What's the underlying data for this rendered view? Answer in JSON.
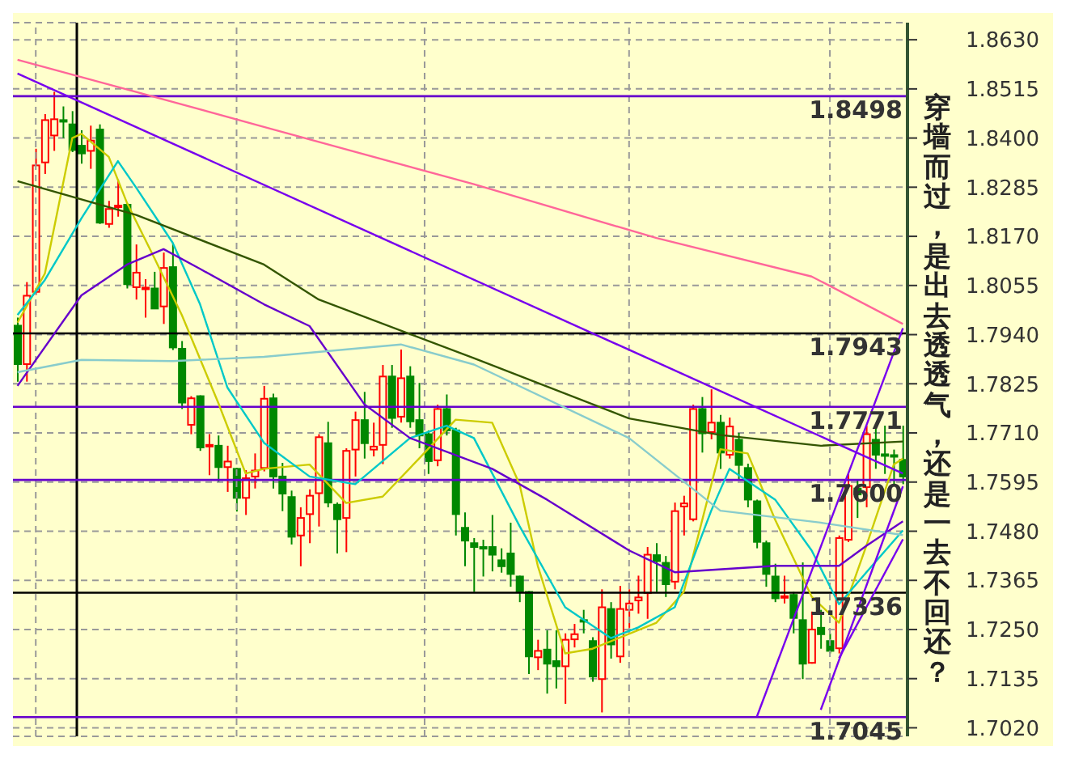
{
  "chart_data": {
    "type": "candlestick",
    "categories": [
      null,
      null,
      null,
      null,
      null,
      null,
      null,
      null,
      null,
      null,
      null,
      null,
      null,
      null,
      null,
      null,
      null,
      null,
      null,
      null,
      null,
      null,
      null,
      null,
      null,
      null,
      null,
      null,
      null,
      null,
      null,
      null,
      null,
      null,
      null,
      null,
      null,
      null,
      null,
      null,
      null,
      null,
      null,
      null,
      null,
      null,
      null,
      null,
      null,
      null,
      null,
      null,
      null,
      null,
      null,
      null,
      null,
      null,
      null,
      null,
      null,
      null,
      null,
      null,
      null,
      null,
      null,
      null,
      null,
      null,
      null,
      null,
      null,
      null,
      null,
      null,
      null,
      null,
      null,
      null,
      null,
      null,
      null,
      null,
      null,
      null,
      null,
      null,
      null,
      null,
      null,
      null,
      null,
      null,
      null,
      null,
      null,
      null
    ],
    "ohlc": [
      [
        1.7961,
        1.798,
        1.783,
        1.7871
      ],
      [
        1.7871,
        1.8063,
        1.783,
        1.8031
      ],
      [
        1.804,
        1.8375,
        1.8033,
        1.8336
      ],
      [
        1.8343,
        1.8456,
        1.8316,
        1.8442
      ],
      [
        1.8406,
        1.8508,
        1.837,
        1.8444
      ],
      [
        1.8442,
        1.8474,
        1.84,
        1.844
      ],
      [
        1.8432,
        1.8463,
        1.8367,
        1.8372
      ],
      [
        1.8382,
        1.8418,
        1.834,
        1.8364
      ],
      [
        1.837,
        1.8429,
        1.8328,
        1.8394
      ],
      [
        1.842,
        1.8432,
        1.8199,
        1.8202
      ],
      [
        1.8199,
        1.8253,
        1.819,
        1.8234
      ],
      [
        1.824,
        1.8303,
        1.8216,
        1.8242
      ],
      [
        1.8244,
        1.8247,
        1.8048,
        1.8058
      ],
      [
        1.8051,
        1.8151,
        1.8022,
        1.8085
      ],
      [
        1.8048,
        1.807,
        1.798,
        1.805
      ],
      [
        1.8048,
        1.8087,
        1.8,
        1.8001
      ],
      [
        1.8006,
        1.8132,
        1.7965,
        1.8096
      ],
      [
        1.8098,
        1.8154,
        1.7904,
        1.791
      ],
      [
        1.7907,
        1.7925,
        1.7766,
        1.7781
      ],
      [
        1.7729,
        1.7796,
        1.7707,
        1.7791
      ],
      [
        1.7796,
        1.7798,
        1.7668,
        1.7676
      ],
      [
        1.768,
        1.7707,
        1.7611,
        1.7682
      ],
      [
        1.768,
        1.7704,
        1.7596,
        1.763
      ],
      [
        1.763,
        1.768,
        1.7572,
        1.7643
      ],
      [
        1.7626,
        1.7628,
        1.7526,
        1.7558
      ],
      [
        1.7558,
        1.7623,
        1.7518,
        1.7604
      ],
      [
        1.7608,
        1.7662,
        1.758,
        1.7622
      ],
      [
        1.7628,
        1.782,
        1.762,
        1.779
      ],
      [
        1.7791,
        1.7802,
        1.758,
        1.7608
      ],
      [
        1.7608,
        1.764,
        1.7527,
        1.7568
      ],
      [
        1.756,
        1.7575,
        1.7449,
        1.7467
      ],
      [
        1.747,
        1.7536,
        1.7398,
        1.7511
      ],
      [
        1.752,
        1.7578,
        1.7452,
        1.7563
      ],
      [
        1.7569,
        1.7707,
        1.7491,
        1.77
      ],
      [
        1.7686,
        1.7736,
        1.7536,
        1.7547
      ],
      [
        1.7542,
        1.7547,
        1.7428,
        1.7508
      ],
      [
        1.7511,
        1.7674,
        1.7431,
        1.7668
      ],
      [
        1.7671,
        1.776,
        1.7608,
        1.774
      ],
      [
        1.774,
        1.7806,
        1.765,
        1.7686
      ],
      [
        1.7671,
        1.7734,
        1.7655,
        1.7678
      ],
      [
        1.7682,
        1.7869,
        1.7637,
        1.7842
      ],
      [
        1.7842,
        1.7869,
        1.7722,
        1.7745
      ],
      [
        1.7748,
        1.7905,
        1.7734,
        1.7838
      ],
      [
        1.7842,
        1.7866,
        1.7722,
        1.7737
      ],
      [
        1.774,
        1.7827,
        1.7674,
        1.7704
      ],
      [
        1.7707,
        1.7716,
        1.7614,
        1.7644
      ],
      [
        1.7646,
        1.7776,
        1.7632,
        1.7766
      ],
      [
        1.7766,
        1.78,
        1.7704,
        1.7716
      ],
      [
        1.7716,
        1.7722,
        1.747,
        1.752
      ],
      [
        1.7488,
        1.7524,
        1.7398,
        1.7458
      ],
      [
        1.7452,
        1.7464,
        1.7338,
        1.7443
      ],
      [
        1.7443,
        1.746,
        1.7374,
        1.7441
      ],
      [
        1.7443,
        1.7518,
        1.7386,
        1.7425
      ],
      [
        1.7412,
        1.744,
        1.7383,
        1.7398
      ],
      [
        1.7428,
        1.75,
        1.735,
        1.738
      ],
      [
        1.7374,
        1.7376,
        1.7314,
        1.7338
      ],
      [
        1.7338,
        1.734,
        1.7146,
        1.7187
      ],
      [
        1.7185,
        1.7226,
        1.7155,
        1.72
      ],
      [
        1.7203,
        1.7248,
        1.71,
        1.717
      ],
      [
        1.7176,
        1.7248,
        1.7112,
        1.7164
      ],
      [
        1.7164,
        1.7241,
        1.7076,
        1.7226
      ],
      [
        1.7227,
        1.7263,
        1.7208,
        1.7239
      ],
      [
        1.7272,
        1.7296,
        1.7241,
        1.727
      ],
      [
        1.7223,
        1.7232,
        1.7128,
        1.714
      ],
      [
        1.7134,
        1.7344,
        1.7056,
        1.7302
      ],
      [
        1.7298,
        1.7314,
        1.7182,
        1.7215
      ],
      [
        1.7187,
        1.7352,
        1.7172,
        1.7298
      ],
      [
        1.7296,
        1.7344,
        1.7254,
        1.7311
      ],
      [
        1.7318,
        1.7376,
        1.7287,
        1.7325
      ],
      [
        1.7335,
        1.7443,
        1.7275,
        1.7425
      ],
      [
        1.7424,
        1.7452,
        1.7338,
        1.741
      ],
      [
        1.7406,
        1.7422,
        1.7326,
        1.7356
      ],
      [
        1.7362,
        1.7547,
        1.7344,
        1.7527
      ],
      [
        1.7538,
        1.7563,
        1.747,
        1.7545
      ],
      [
        1.7508,
        1.7776,
        1.7503,
        1.7766
      ],
      [
        1.7766,
        1.7794,
        1.7664,
        1.7709
      ],
      [
        1.7712,
        1.7812,
        1.7695,
        1.7734
      ],
      [
        1.7734,
        1.7752,
        1.7626,
        1.7664
      ],
      [
        1.7659,
        1.7746,
        1.765,
        1.7725
      ],
      [
        1.7694,
        1.771,
        1.7602,
        1.7635
      ],
      [
        1.7628,
        1.7638,
        1.7536,
        1.7554
      ],
      [
        1.755,
        1.7554,
        1.744,
        1.7455
      ],
      [
        1.7452,
        1.7458,
        1.735,
        1.738
      ],
      [
        1.7374,
        1.7404,
        1.7314,
        1.7323
      ],
      [
        1.7325,
        1.7376,
        1.7311,
        1.7328
      ],
      [
        1.7331,
        1.7338,
        1.7241,
        1.7277
      ],
      [
        1.7272,
        1.7407,
        1.7134,
        1.717
      ],
      [
        1.7172,
        1.7292,
        1.717,
        1.725
      ],
      [
        1.7254,
        1.7296,
        1.7205,
        1.7239
      ],
      [
        1.7223,
        1.7241,
        1.7194,
        1.72
      ],
      [
        1.7206,
        1.747,
        1.7194,
        1.7464
      ],
      [
        1.746,
        1.7614,
        1.7455,
        1.7586
      ],
      [
        1.758,
        1.7601,
        1.7511,
        1.7566
      ],
      [
        1.7583,
        1.7727,
        1.7536,
        1.7707
      ],
      [
        1.7694,
        1.7727,
        1.7626,
        1.7659
      ],
      [
        1.766,
        1.7727,
        1.7614,
        1.7658
      ],
      [
        1.7658,
        1.7671,
        1.759,
        1.7655
      ],
      [
        1.7647,
        1.7727,
        1.759,
        1.7608
      ]
    ],
    "series": [
      {
        "type": "line",
        "color": "#cccc00",
        "values": [
          1.7968,
          null,
          null,
          1.8083,
          null,
          null,
          1.84,
          1.841,
          null,
          null,
          1.8356,
          null,
          1.8248,
          null,
          null,
          1.8119,
          null,
          null,
          1.7986,
          null,
          null,
          null,
          1.778,
          null,
          null,
          1.7615,
          null,
          1.7626,
          null,
          null,
          null,
          null,
          1.7636,
          null,
          null,
          null,
          1.7546,
          null,
          null,
          null,
          1.7561,
          null,
          null,
          null,
          1.765,
          null,
          null,
          null,
          1.7741,
          null,
          null,
          null,
          1.7734,
          null,
          null,
          1.759,
          null,
          1.7399,
          null,
          null,
          1.7194,
          null,
          null,
          1.7205,
          null,
          null,
          null,
          null,
          null,
          null,
          1.7266,
          null,
          null,
          1.7338,
          null,
          null,
          null,
          1.7672,
          null,
          null,
          1.7662,
          null,
          null,
          1.7507,
          null,
          null,
          null,
          1.7327,
          null,
          null,
          1.7266,
          null,
          null,
          1.7446,
          null,
          null,
          1.7636,
          1.765
        ]
      },
      {
        "type": "line",
        "color": "#00c8c8",
        "values": [
          1.7986,
          null,
          null,
          1.8068,
          null,
          null,
          null,
          1.8212,
          null,
          null,
          null,
          1.8346,
          null,
          1.8284,
          null,
          null,
          null,
          1.8155,
          null,
          null,
          1.8011,
          null,
          null,
          1.7816,
          null,
          null,
          null,
          1.7687,
          null,
          null,
          null,
          null,
          1.7608,
          null,
          null,
          null,
          null,
          1.759,
          null,
          null,
          null,
          null,
          null,
          1.7698,
          null,
          null,
          null,
          1.7727,
          null,
          null,
          1.7698,
          null,
          null,
          null,
          null,
          1.7492,
          null,
          null,
          null,
          null,
          1.7302,
          null,
          null,
          null,
          null,
          1.723,
          null,
          null,
          1.7255,
          null,
          null,
          null,
          1.7302,
          null,
          null,
          null,
          1.7528,
          null,
          1.7626,
          null,
          null,
          null,
          null,
          1.7554,
          null,
          null,
          null,
          1.7435,
          null,
          null,
          1.7309,
          null,
          null,
          1.7384,
          null,
          null,
          null,
          1.7482
        ]
      },
      {
        "type": "line",
        "color": "#6600cc",
        "values": [
          1.782,
          null,
          null,
          null,
          null,
          null,
          null,
          1.8032,
          null,
          null,
          null,
          null,
          1.8104,
          null,
          null,
          null,
          1.814,
          null,
          null,
          null,
          1.8094,
          null,
          null,
          null,
          null,
          null,
          null,
          1.8011,
          null,
          null,
          null,
          null,
          1.796,
          null,
          null,
          null,
          null,
          null,
          1.7777,
          null,
          null,
          null,
          null,
          1.7698,
          null,
          null,
          null,
          null,
          null,
          null,
          null,
          null,
          1.7626,
          null,
          null,
          null,
          null,
          null,
          1.7554,
          null,
          null,
          null,
          null,
          null,
          null,
          null,
          null,
          1.7435,
          null,
          null,
          null,
          null,
          1.7384,
          null,
          null,
          null,
          null,
          null,
          null,
          null,
          null,
          null,
          null,
          1.7399,
          null,
          null,
          null,
          null,
          null,
          null,
          1.7399,
          null,
          null,
          1.7446,
          null,
          null,
          null,
          1.7503
        ]
      },
      {
        "type": "line",
        "color": "#88cccc",
        "values": [
          1.7852,
          null,
          null,
          null,
          null,
          null,
          null,
          1.7881,
          null,
          null,
          null,
          null,
          null,
          null,
          null,
          null,
          null,
          1.7878,
          null,
          null,
          null,
          null,
          null,
          null,
          null,
          null,
          null,
          1.7888,
          null,
          null,
          null,
          null,
          null,
          null,
          null,
          null,
          null,
          null,
          null,
          null,
          null,
          null,
          1.7917,
          null,
          null,
          null,
          null,
          null,
          null,
          null,
          1.787,
          null,
          null,
          null,
          null,
          null,
          null,
          null,
          null,
          null,
          null,
          null,
          null,
          null,
          null,
          null,
          null,
          1.7698,
          null,
          null,
          null,
          null,
          null,
          null,
          null,
          null,
          null,
          1.7528,
          null,
          null,
          null,
          null,
          null,
          null,
          null,
          null,
          null,
          null,
          1.75,
          null,
          null,
          null,
          null,
          null,
          null,
          null,
          null,
          1.7471
        ]
      },
      {
        "type": "line",
        "color": "#335500",
        "values": [
          1.8299,
          null,
          null,
          null,
          null,
          null,
          null,
          null,
          null,
          null,
          null,
          null,
          null,
          1.822,
          null,
          null,
          null,
          null,
          null,
          null,
          null,
          null,
          null,
          null,
          null,
          null,
          null,
          1.8104,
          null,
          null,
          null,
          null,
          null,
          1.8022,
          null,
          null,
          null,
          null,
          null,
          null,
          null,
          null,
          null,
          null,
          null,
          null,
          null,
          null,
          null,
          null,
          1.7885,
          null,
          null,
          null,
          null,
          null,
          null,
          null,
          null,
          null,
          null,
          null,
          null,
          null,
          null,
          null,
          null,
          1.7744,
          null,
          null,
          null,
          null,
          null,
          null,
          null,
          null,
          null,
          1.7705,
          null,
          null,
          null,
          null,
          null,
          null,
          null,
          null,
          null,
          null,
          1.768,
          null,
          null,
          null,
          null,
          null,
          null,
          null,
          null,
          1.769
        ]
      },
      {
        "type": "line",
        "color": "#ff6699",
        "values": [
          1.8583,
          null,
          null,
          null,
          null,
          null,
          null,
          null,
          null,
          null,
          null,
          null,
          null,
          1.8508,
          null,
          null,
          null,
          null,
          null,
          null,
          null,
          null,
          null,
          null,
          null,
          null,
          null,
          1.8426,
          null,
          null,
          null,
          null,
          null,
          null,
          null,
          null,
          null,
          null,
          null,
          null,
          null,
          null,
          null,
          null,
          null,
          null,
          null,
          null,
          null,
          null,
          1.8292,
          null,
          null,
          null,
          null,
          null,
          null,
          null,
          null,
          null,
          null,
          null,
          null,
          null,
          null,
          null,
          null,
          null,
          null,
          null,
          1.8166,
          null,
          null,
          null,
          null,
          null,
          null,
          null,
          null,
          null,
          null,
          null,
          null,
          null,
          null,
          null,
          null,
          1.8076,
          null,
          null,
          null,
          null,
          null,
          null,
          null,
          null,
          null,
          1.7965
        ]
      },
      {
        "type": "line",
        "color": "#7700ee",
        "values": [
          1.8551,
          null,
          null,
          null,
          null,
          null,
          null,
          null,
          null,
          null,
          null,
          null,
          null,
          null,
          null,
          null,
          null,
          null,
          null,
          null,
          null,
          null,
          null,
          null,
          null,
          null,
          null,
          null,
          null,
          null,
          null,
          null,
          null,
          null,
          null,
          null,
          null,
          null,
          null,
          null,
          null,
          null,
          null,
          null,
          null,
          null,
          null,
          null,
          null,
          null,
          null,
          null,
          null,
          null,
          null,
          null,
          null,
          null,
          null,
          null,
          null,
          null,
          null,
          null,
          null,
          null,
          null,
          null,
          null,
          null,
          null,
          null,
          null,
          null,
          null,
          null,
          null,
          null,
          null,
          null,
          null,
          null,
          null,
          null,
          null,
          null,
          null,
          null,
          null,
          null,
          null,
          null,
          null,
          null,
          null,
          null,
          null,
          1.7615
        ]
      },
      {
        "type": "line",
        "color": "#7700ee",
        "values": [
          null,
          null,
          null,
          null,
          null,
          null,
          null,
          null,
          null,
          null,
          null,
          null,
          null,
          null,
          null,
          null,
          null,
          null,
          null,
          null,
          null,
          null,
          null,
          null,
          null,
          null,
          null,
          null,
          null,
          null,
          null,
          null,
          null,
          null,
          null,
          null,
          null,
          null,
          null,
          null,
          null,
          null,
          null,
          null,
          null,
          null,
          null,
          null,
          null,
          null,
          null,
          null,
          null,
          null,
          null,
          null,
          null,
          null,
          null,
          null,
          null,
          null,
          null,
          null,
          null,
          null,
          null,
          null,
          null,
          null,
          null,
          null,
          null,
          null,
          null,
          null,
          null,
          null,
          null,
          null,
          null,
          1.7046,
          null,
          null,
          null,
          null,
          null,
          null,
          null,
          null,
          null,
          null,
          null,
          null,
          null,
          null,
          null,
          1.7955
        ]
      },
      {
        "type": "line",
        "color": "#7700ee",
        "values": [
          null,
          null,
          null,
          null,
          null,
          null,
          null,
          null,
          null,
          null,
          null,
          null,
          null,
          null,
          null,
          null,
          null,
          null,
          null,
          null,
          null,
          null,
          null,
          null,
          null,
          null,
          null,
          null,
          null,
          null,
          null,
          null,
          null,
          null,
          null,
          null,
          null,
          null,
          null,
          null,
          null,
          null,
          null,
          null,
          null,
          null,
          null,
          null,
          null,
          null,
          null,
          null,
          null,
          null,
          null,
          null,
          null,
          null,
          null,
          null,
          null,
          null,
          null,
          null,
          null,
          null,
          null,
          null,
          null,
          null,
          null,
          null,
          null,
          null,
          null,
          null,
          null,
          null,
          null,
          null,
          null,
          null,
          null,
          null,
          null,
          null,
          null,
          null,
          1.7062,
          null,
          null,
          null,
          null,
          null,
          null,
          null,
          null,
          1.7585
        ]
      },
      {
        "type": "line",
        "color": "#7700ee",
        "values": [
          null,
          null,
          null,
          null,
          null,
          null,
          null,
          null,
          null,
          null,
          null,
          null,
          null,
          null,
          null,
          null,
          null,
          null,
          null,
          null,
          null,
          null,
          null,
          null,
          null,
          null,
          null,
          null,
          null,
          null,
          null,
          null,
          null,
          null,
          null,
          null,
          null,
          null,
          null,
          null,
          null,
          null,
          null,
          null,
          null,
          null,
          null,
          null,
          null,
          null,
          null,
          null,
          null,
          null,
          null,
          null,
          null,
          null,
          null,
          null,
          null,
          null,
          null,
          null,
          null,
          null,
          null,
          null,
          null,
          null,
          null,
          null,
          null,
          null,
          null,
          null,
          null,
          null,
          null,
          null,
          null,
          null,
          null,
          null,
          null,
          null,
          null,
          null,
          null,
          null,
          1.7183,
          null,
          null,
          null,
          null,
          null,
          null,
          1.7461
        ]
      }
    ],
    "ylim": [
      1.7,
      1.867
    ],
    "yticks": [
      {
        "value": 1.863,
        "label": "1.8630"
      },
      {
        "value": 1.8515,
        "label": "1.8515"
      },
      {
        "value": 1.84,
        "label": "1.8400"
      },
      {
        "value": 1.8285,
        "label": "1.8285"
      },
      {
        "value": 1.817,
        "label": "1.8170"
      },
      {
        "value": 1.8055,
        "label": "1.8055"
      },
      {
        "value": 1.794,
        "label": "1.7940"
      },
      {
        "value": 1.7825,
        "label": "1.7825"
      },
      {
        "value": 1.771,
        "label": "1.7710"
      },
      {
        "value": 1.7595,
        "label": "1.7595"
      },
      {
        "value": 1.748,
        "label": "1.7480"
      },
      {
        "value": 1.7365,
        "label": "1.7365"
      },
      {
        "value": 1.725,
        "label": "1.7250"
      },
      {
        "value": 1.7135,
        "label": "1.7135"
      },
      {
        "value": 1.702,
        "label": "1.7020"
      }
    ],
    "ref_lines": [
      {
        "axis": "y",
        "value": 1.8498,
        "label": "1.8498",
        "color": "#6600cc"
      },
      {
        "axis": "y",
        "value": 1.7943,
        "label": "1.7943",
        "color": "#000000"
      },
      {
        "axis": "y",
        "value": 1.7771,
        "label": "1.7771",
        "color": "#6600cc"
      },
      {
        "axis": "y",
        "value": 1.76,
        "label": "1.7600",
        "color": "#6600cc"
      },
      {
        "axis": "y",
        "value": 1.7336,
        "label": "1.7336",
        "color": "#000000"
      },
      {
        "axis": "y",
        "value": 1.7045,
        "label": "1.7045",
        "color": "#6600cc"
      }
    ],
    "annotations": [
      "穿墙而过，是出去透透气，还是一去不回还？"
    ],
    "grid": true,
    "tick_labels": "y"
  }
}
